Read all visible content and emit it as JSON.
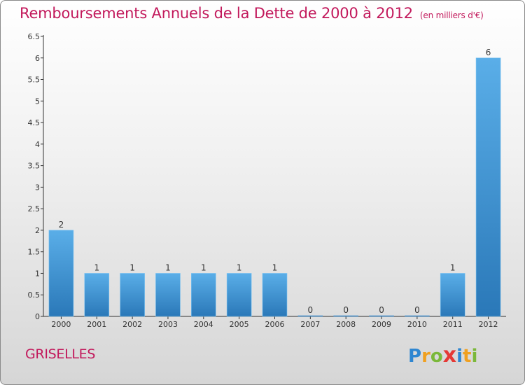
{
  "title": "Remboursements Annuels de la Dette de 2000 à 2012",
  "title_unit": "(en milliers d'€)",
  "town": "GRISELLES",
  "logo": {
    "letters": [
      {
        "ch": "P",
        "color": "#2e86d1"
      },
      {
        "ch": "r",
        "color": "#f0a020"
      },
      {
        "ch": "o",
        "color": "#7bb83a"
      },
      {
        "ch": "x",
        "color": "#e53935"
      },
      {
        "ch": "i",
        "color": "#2e86d1"
      },
      {
        "ch": "t",
        "color": "#f0a020"
      },
      {
        "ch": "i",
        "color": "#7bb83a"
      }
    ]
  },
  "colors": {
    "bar_light": "#5aaee8",
    "bar_dark": "#2a78b8",
    "title": "#c2185b"
  },
  "chart_data": {
    "type": "bar",
    "categories": [
      "2000",
      "2001",
      "2002",
      "2003",
      "2004",
      "2005",
      "2006",
      "2007",
      "2008",
      "2009",
      "2010",
      "2011",
      "2012"
    ],
    "values": [
      2,
      1,
      1,
      1,
      1,
      1,
      1,
      0,
      0,
      0,
      0,
      1,
      6
    ],
    "value_labels": [
      "2",
      "1",
      "1",
      "1",
      "1",
      "1",
      "1",
      "0",
      "0",
      "0",
      "0",
      "1",
      "6"
    ],
    "ylim": [
      0,
      6.5
    ],
    "yticks": [
      "0",
      "0.5",
      "1",
      "1.5",
      "2",
      "2.5",
      "3",
      "3.5",
      "4",
      "4.5",
      "5",
      "5.5",
      "6",
      "6.5"
    ],
    "grid": false,
    "legend": "none"
  }
}
